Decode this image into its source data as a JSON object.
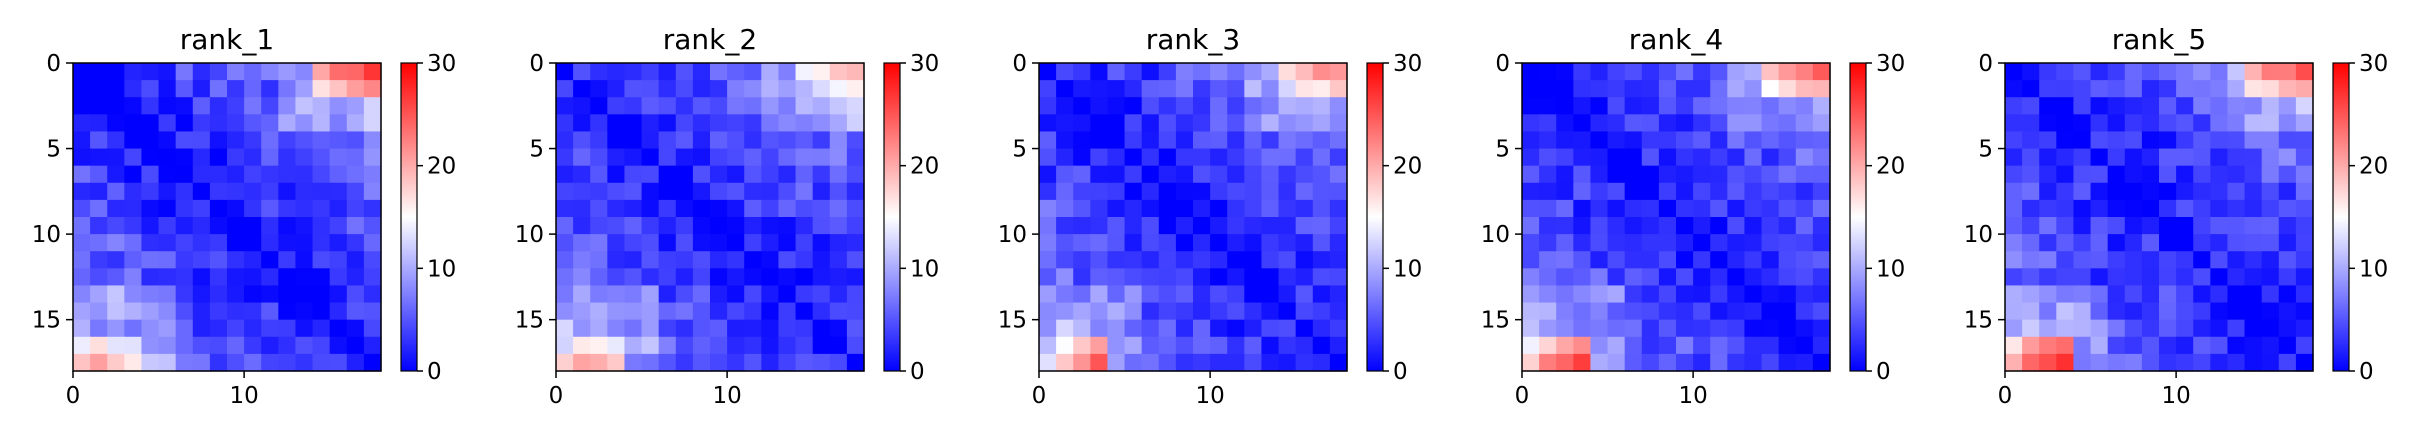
{
  "chart_data": {
    "type": "heatmap",
    "colormap": "bwr",
    "vmin": 0,
    "vmax": 30,
    "grid_size": 18,
    "x_ticks": [
      0,
      10
    ],
    "y_ticks": [
      0,
      5,
      10,
      15
    ],
    "colorbar_ticks": [
      0,
      10,
      20,
      30
    ],
    "panels": [
      {
        "title": "rank_1",
        "top_right": [
          20,
          23,
          24,
          26
        ],
        "bottom_left": [
          18,
          20,
          18,
          17
        ]
      },
      {
        "title": "rank_2",
        "top_right": [
          14,
          16,
          18,
          20
        ],
        "bottom_left": [
          17,
          21,
          20,
          18
        ]
      },
      {
        "title": "rank_3",
        "top_right": [
          17,
          20,
          21,
          22
        ],
        "bottom_left": [
          14,
          19,
          22,
          24
        ]
      },
      {
        "title": "rank_4",
        "top_right": [
          19,
          21,
          22,
          24
        ],
        "bottom_left": [
          18,
          22,
          24,
          26
        ]
      },
      {
        "title": "rank_5",
        "top_right": [
          20,
          22,
          23,
          25
        ],
        "bottom_left": [
          20,
          24,
          26,
          28
        ]
      }
    ]
  }
}
